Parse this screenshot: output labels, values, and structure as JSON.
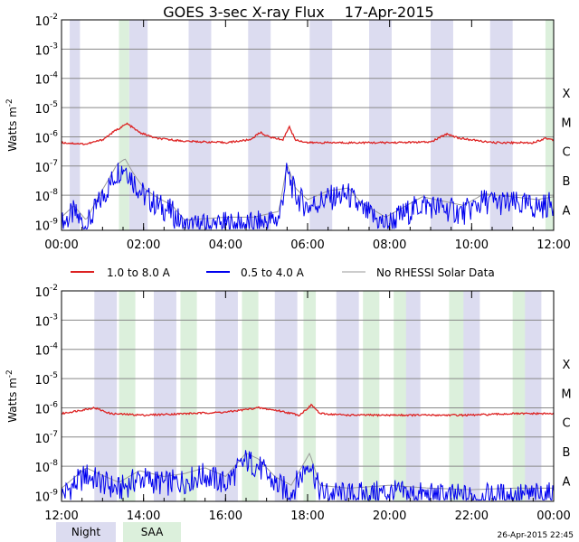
{
  "title": "GOES 3-sec X-ray Flux",
  "date": "17-Apr-2015",
  "footer_stamp": "26-Apr-2015 22:45",
  "legend": [
    {
      "label": "1.0 to 8.0 A",
      "color": "#dd2222"
    },
    {
      "label": "0.5 to 4.0 A",
      "color": "#0000ee"
    },
    {
      "label": "No RHESSI Solar Data",
      "color": "#9a9a9a"
    }
  ],
  "bottom_legend": [
    {
      "label": "Night",
      "color": "#dcdcf0"
    },
    {
      "label": "SAA",
      "color": "#dcf0dc"
    }
  ],
  "colors": {
    "night": "#dcdcf0",
    "saa": "#dcf0dc",
    "long": "#dd2222",
    "short": "#0000ee",
    "nodata": "#9a9a9a",
    "grid": "#888888"
  },
  "chart_data": [
    {
      "type": "line",
      "panel": "top",
      "ylabel": "Watts m^-2",
      "yscale": "log",
      "ylim_exp": [
        -9.2,
        -2
      ],
      "ytick_exponents": [
        -2,
        -3,
        -4,
        -5,
        -6,
        -7,
        -8,
        -9
      ],
      "flare_classes": [
        "X",
        "M",
        "C",
        "B",
        "A"
      ],
      "xlim_hours": [
        0,
        12
      ],
      "xtick_labels": [
        "00:00",
        "02:00",
        "04:00",
        "06:00",
        "08:00",
        "10:00",
        "12:00"
      ],
      "night_hours": [
        [
          0.2,
          0.45
        ],
        [
          1.65,
          2.1
        ],
        [
          3.1,
          3.65
        ],
        [
          4.55,
          5.1
        ],
        [
          6.05,
          6.6
        ],
        [
          7.5,
          8.05
        ],
        [
          9.0,
          9.55
        ],
        [
          10.45,
          11.0
        ]
      ],
      "saa_hours": [
        [
          1.4,
          1.65
        ],
        [
          11.8,
          12.0
        ]
      ],
      "series": [
        {
          "name": "1.0 to 8.0 A",
          "points": [
            [
              0,
              -6.2
            ],
            [
              0.6,
              -6.25
            ],
            [
              1.0,
              -6.1
            ],
            [
              1.3,
              -5.8
            ],
            [
              1.6,
              -5.55
            ],
            [
              1.9,
              -5.85
            ],
            [
              2.3,
              -6.05
            ],
            [
              3.0,
              -6.15
            ],
            [
              4.0,
              -6.2
            ],
            [
              4.6,
              -6.1
            ],
            [
              4.85,
              -5.85
            ],
            [
              5.05,
              -6.0
            ],
            [
              5.4,
              -6.1
            ],
            [
              5.55,
              -5.65
            ],
            [
              5.7,
              -6.1
            ],
            [
              6.0,
              -6.2
            ],
            [
              8.0,
              -6.2
            ],
            [
              9.0,
              -6.18
            ],
            [
              9.4,
              -5.9
            ],
            [
              9.7,
              -6.05
            ],
            [
              10.5,
              -6.2
            ],
            [
              11.5,
              -6.2
            ],
            [
              11.8,
              -6.05
            ],
            [
              12.0,
              -6.1
            ]
          ]
        },
        {
          "name": "0.5 to 4.0 A",
          "points": [
            [
              0,
              -9.0
            ],
            [
              0.3,
              -8.6
            ],
            [
              0.6,
              -9.1
            ],
            [
              0.9,
              -8.3
            ],
            [
              1.15,
              -7.7
            ],
            [
              1.35,
              -7.2
            ],
            [
              1.55,
              -7.0
            ],
            [
              1.75,
              -7.5
            ],
            [
              2.0,
              -8.0
            ],
            [
              2.3,
              -8.3
            ],
            [
              2.7,
              -8.6
            ],
            [
              3.0,
              -9.1
            ],
            [
              4.0,
              -9.0
            ],
            [
              4.7,
              -9.0
            ],
            [
              5.3,
              -8.8
            ],
            [
              5.5,
              -7.2
            ],
            [
              5.7,
              -8.0
            ],
            [
              6.0,
              -8.4
            ],
            [
              6.5,
              -8.1
            ],
            [
              7.0,
              -8.0
            ],
            [
              7.3,
              -8.5
            ],
            [
              7.9,
              -9.0
            ],
            [
              8.8,
              -8.3
            ],
            [
              9.8,
              -8.6
            ],
            [
              10.3,
              -8.2
            ],
            [
              11.0,
              -8.3
            ],
            [
              11.6,
              -8.4
            ],
            [
              12.0,
              -8.3
            ]
          ]
        }
      ]
    },
    {
      "type": "line",
      "panel": "bottom",
      "ylabel": "Watts m^-2",
      "yscale": "log",
      "ylim_exp": [
        -9.2,
        -2
      ],
      "ytick_exponents": [
        -2,
        -3,
        -4,
        -5,
        -6,
        -7,
        -8,
        -9
      ],
      "flare_classes": [
        "X",
        "M",
        "C",
        "B",
        "A"
      ],
      "xlim_hours": [
        12,
        24
      ],
      "xtick_labels": [
        "12:00",
        "14:00",
        "16:00",
        "18:00",
        "20:00",
        "22:00",
        "00:00"
      ],
      "night_hours": [
        [
          12.8,
          13.35
        ],
        [
          14.25,
          14.8
        ],
        [
          15.75,
          16.3
        ],
        [
          17.2,
          17.75
        ],
        [
          18.7,
          19.25
        ],
        [
          20.2,
          20.75
        ],
        [
          21.65,
          22.2
        ],
        [
          23.15,
          23.7
        ]
      ],
      "saa_hours": [
        [
          13.4,
          13.8
        ],
        [
          14.9,
          15.3
        ],
        [
          16.4,
          16.8
        ],
        [
          17.9,
          18.2
        ],
        [
          19.35,
          19.75
        ],
        [
          20.1,
          20.4
        ],
        [
          21.45,
          21.8
        ],
        [
          23.0,
          23.3
        ]
      ],
      "series": [
        {
          "name": "1.0 to 8.0 A",
          "points": [
            [
              12,
              -6.2
            ],
            [
              12.8,
              -6.0
            ],
            [
              13.2,
              -6.2
            ],
            [
              14.0,
              -6.25
            ],
            [
              15.0,
              -6.2
            ],
            [
              16.0,
              -6.15
            ],
            [
              16.8,
              -6.0
            ],
            [
              17.3,
              -6.1
            ],
            [
              17.8,
              -6.25
            ],
            [
              18.1,
              -5.9
            ],
            [
              18.3,
              -6.2
            ],
            [
              19.0,
              -6.25
            ],
            [
              20.0,
              -6.25
            ],
            [
              22.0,
              -6.25
            ],
            [
              23.0,
              -6.2
            ],
            [
              24.0,
              -6.2
            ]
          ]
        },
        {
          "name": "0.5 to 4.0 A",
          "points": [
            [
              12,
              -9.0
            ],
            [
              12.6,
              -8.3
            ],
            [
              12.9,
              -8.5
            ],
            [
              13.4,
              -8.8
            ],
            [
              13.9,
              -8.4
            ],
            [
              14.5,
              -8.6
            ],
            [
              15.0,
              -8.5
            ],
            [
              15.5,
              -8.3
            ],
            [
              16.0,
              -8.6
            ],
            [
              16.5,
              -7.8
            ],
            [
              16.8,
              -8.0
            ],
            [
              17.2,
              -8.6
            ],
            [
              17.6,
              -8.9
            ],
            [
              18.05,
              -7.8
            ],
            [
              18.3,
              -8.9
            ],
            [
              19.0,
              -9.0
            ],
            [
              20.0,
              -8.9
            ],
            [
              21.0,
              -9.0
            ],
            [
              22.0,
              -9.05
            ],
            [
              23.0,
              -9.0
            ],
            [
              24.0,
              -9.0
            ]
          ]
        }
      ]
    }
  ]
}
